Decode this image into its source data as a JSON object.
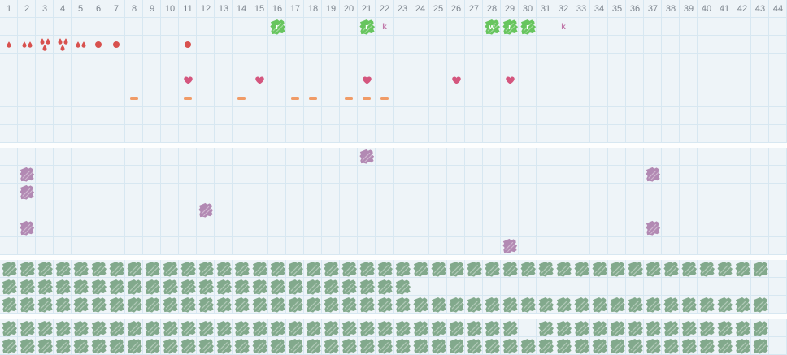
{
  "palette": {
    "red": "#d8514e",
    "heart": "#d4567e",
    "orange": "#f09b67",
    "green": "#67c55e",
    "pinkletter": "#c179aa",
    "purple": "#b289b3",
    "sage": "#82a98c",
    "gridline": "#d7e7f1",
    "cellbg": "#eef4f8",
    "headertext": "#7b838c"
  },
  "header": {
    "days": [
      1,
      2,
      3,
      4,
      5,
      6,
      7,
      8,
      9,
      10,
      11,
      12,
      13,
      14,
      15,
      16,
      17,
      18,
      19,
      20,
      21,
      22,
      23,
      24,
      25,
      26,
      27,
      28,
      29,
      30,
      31,
      32,
      33,
      34,
      35,
      36,
      37,
      38,
      39,
      40,
      41,
      42,
      43,
      44
    ]
  },
  "sections": [
    {
      "name": "symptoms",
      "rows": 7,
      "marks": [
        {
          "row": 1,
          "col": 16,
          "type": "event",
          "label": "r"
        },
        {
          "row": 1,
          "col": 21,
          "type": "event",
          "label": "r"
        },
        {
          "row": 1,
          "col": 22,
          "type": "letter",
          "label": "k"
        },
        {
          "row": 1,
          "col": 28,
          "type": "event",
          "label": "w"
        },
        {
          "row": 1,
          "col": 29,
          "type": "event",
          "label": "r"
        },
        {
          "row": 1,
          "col": 30,
          "type": "event",
          "label": "r"
        },
        {
          "row": 1,
          "col": 32,
          "type": "letter",
          "label": "k"
        },
        {
          "row": 2,
          "col": 1,
          "type": "flow-1"
        },
        {
          "row": 2,
          "col": 2,
          "type": "flow-2"
        },
        {
          "row": 2,
          "col": 3,
          "type": "flow-3"
        },
        {
          "row": 2,
          "col": 4,
          "type": "flow-3"
        },
        {
          "row": 2,
          "col": 5,
          "type": "flow-2"
        },
        {
          "row": 2,
          "col": 6,
          "type": "dot"
        },
        {
          "row": 2,
          "col": 7,
          "type": "dot"
        },
        {
          "row": 2,
          "col": 11,
          "type": "dot"
        },
        {
          "row": 4,
          "col": 11,
          "type": "heart"
        },
        {
          "row": 4,
          "col": 15,
          "type": "heart"
        },
        {
          "row": 4,
          "col": 21,
          "type": "heart"
        },
        {
          "row": 4,
          "col": 26,
          "type": "heart"
        },
        {
          "row": 4,
          "col": 29,
          "type": "heart"
        },
        {
          "row": 5,
          "col": 8,
          "type": "dash"
        },
        {
          "row": 5,
          "col": 11,
          "type": "dash"
        },
        {
          "row": 5,
          "col": 14,
          "type": "dash"
        },
        {
          "row": 5,
          "col": 17,
          "type": "dash"
        },
        {
          "row": 5,
          "col": 18,
          "type": "dash"
        },
        {
          "row": 5,
          "col": 20,
          "type": "dash"
        },
        {
          "row": 5,
          "col": 21,
          "type": "dash"
        },
        {
          "row": 5,
          "col": 22,
          "type": "dash"
        }
      ]
    },
    {
      "name": "scatter-marks",
      "rows": 6,
      "markType": "purple",
      "marks": [
        {
          "row": 1,
          "col": 21
        },
        {
          "row": 2,
          "col": 2
        },
        {
          "row": 2,
          "col": 37
        },
        {
          "row": 3,
          "col": 2
        },
        {
          "row": 4,
          "col": 12
        },
        {
          "row": 5,
          "col": 2
        },
        {
          "row": 5,
          "col": 37
        },
        {
          "row": 6,
          "col": 29
        }
      ]
    },
    {
      "name": "filled-rows-upper",
      "rows": 3,
      "markType": "sage",
      "marks": [
        {
          "row": 1,
          "from": 1,
          "to": 43
        },
        {
          "row": 2,
          "from": 1,
          "to": 23
        },
        {
          "row": 3,
          "from": 1,
          "to": 43
        }
      ]
    },
    {
      "name": "filled-rows-lower",
      "rows": 2,
      "markType": "sage",
      "marks": [
        {
          "row": 1,
          "from": 1,
          "to": 29
        },
        {
          "row": 1,
          "from": 31,
          "to": 43
        },
        {
          "row": 2,
          "from": 1,
          "to": 43
        }
      ]
    }
  ]
}
